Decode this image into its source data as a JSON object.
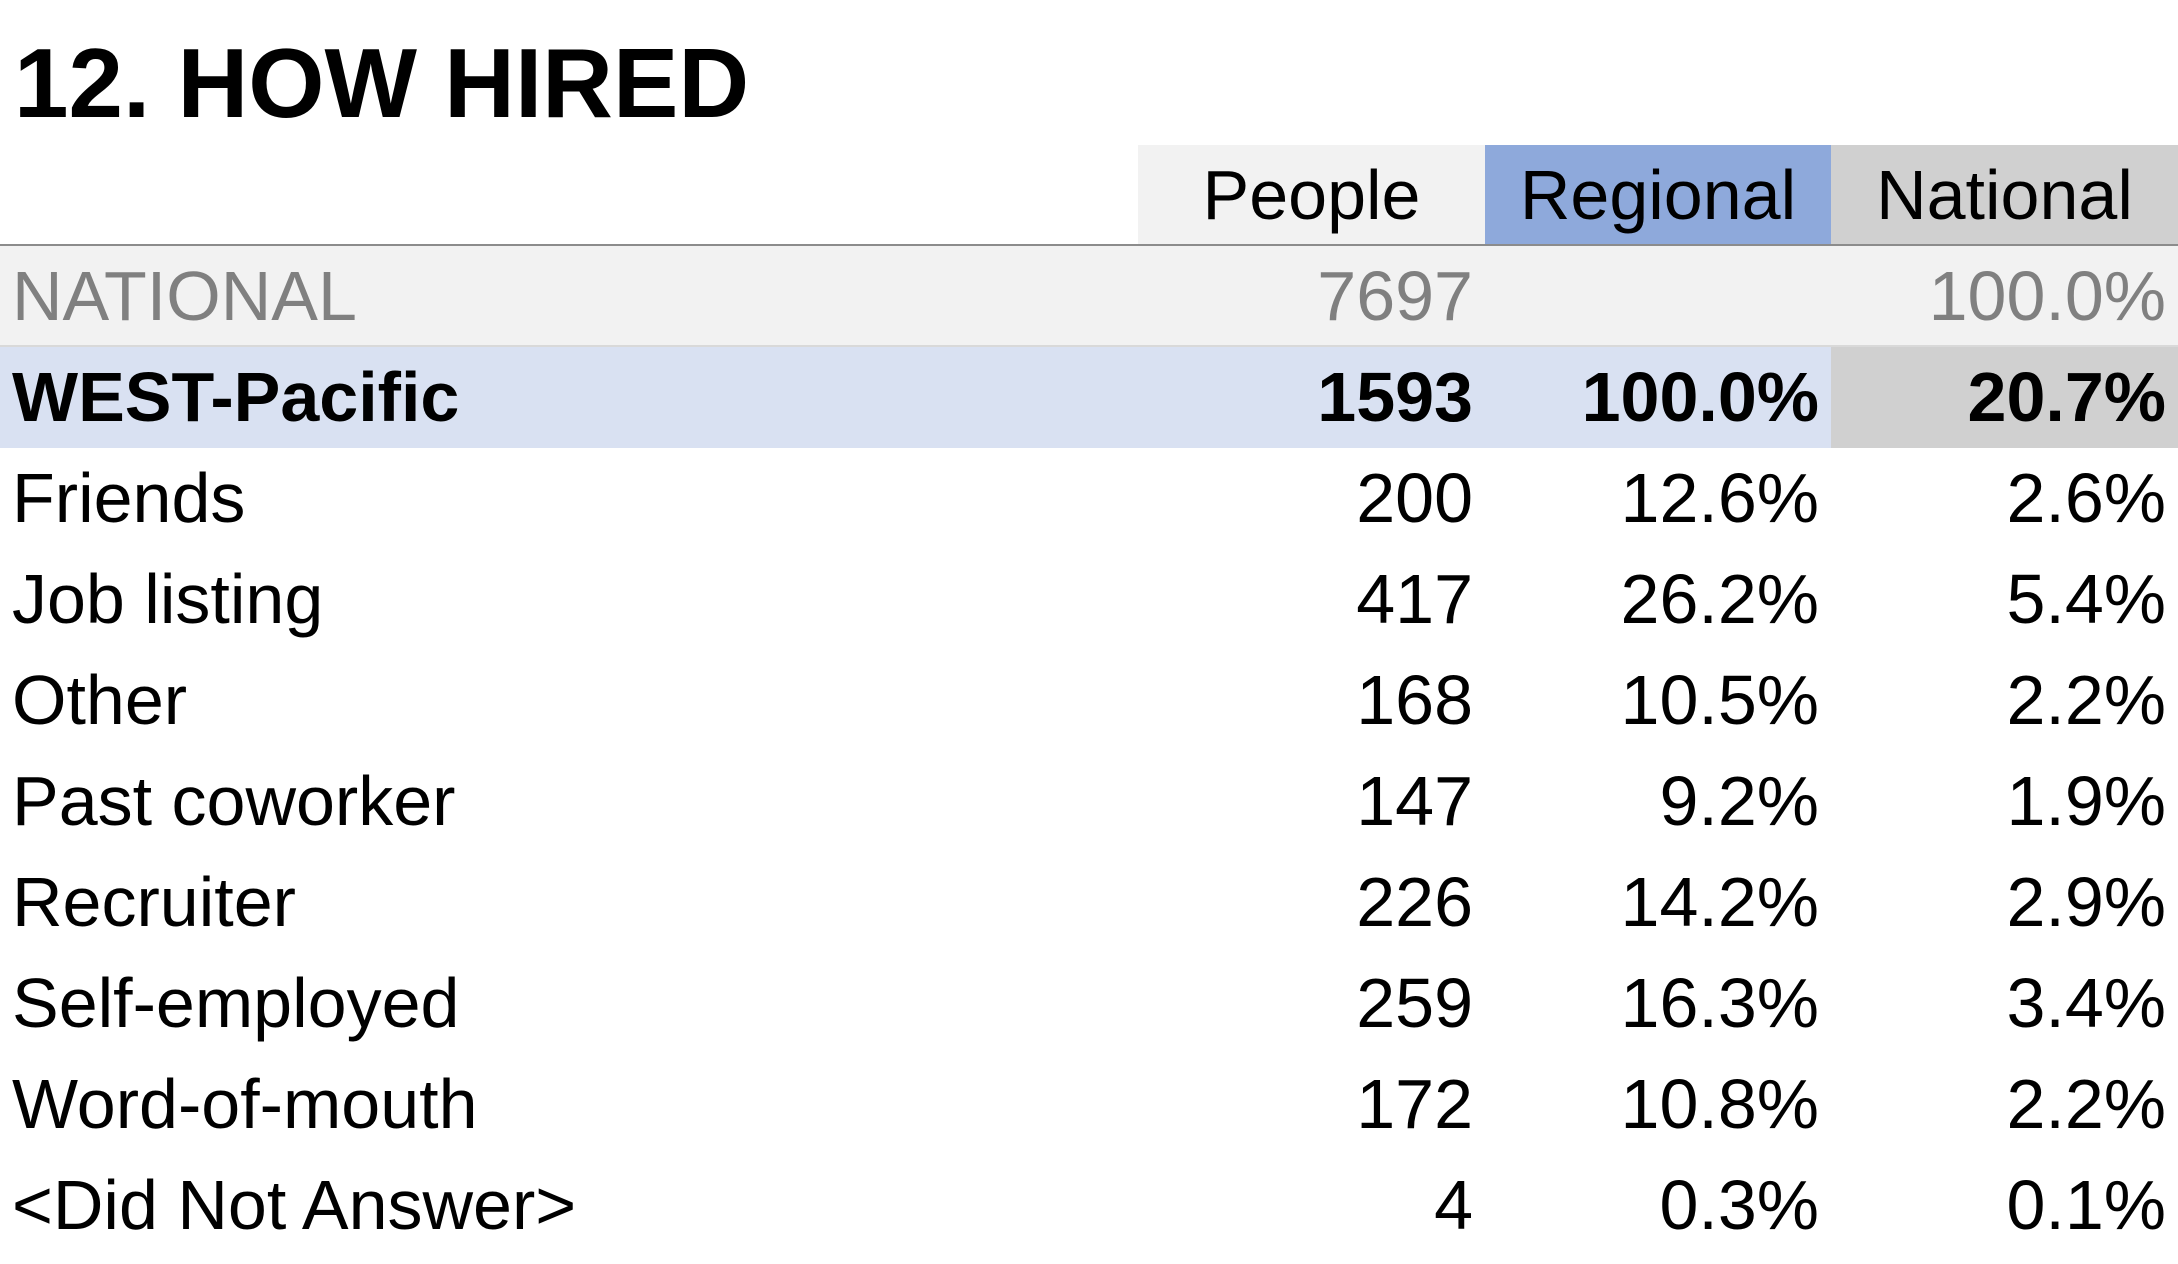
{
  "title": "12. HOW HIRED",
  "columns": {
    "people": "People",
    "regional": "Regional",
    "national": "National"
  },
  "national_row": {
    "label": "NATIONAL",
    "people": "7697",
    "regional": "",
    "national": "100.0%"
  },
  "region_row": {
    "label": "WEST-Pacific",
    "people": "1593",
    "regional": "100.0%",
    "national": "20.7%"
  },
  "rows": [
    {
      "label": "Friends",
      "people": "200",
      "regional": "12.6%",
      "national": "2.6%"
    },
    {
      "label": "Job listing",
      "people": "417",
      "regional": "26.2%",
      "national": "5.4%"
    },
    {
      "label": "Other",
      "people": "168",
      "regional": "10.5%",
      "national": "2.2%"
    },
    {
      "label": "Past coworker",
      "people": "147",
      "regional": "9.2%",
      "national": "1.9%"
    },
    {
      "label": "Recruiter",
      "people": "226",
      "regional": "14.2%",
      "national": "2.9%"
    },
    {
      "label": "Self-employed",
      "people": "259",
      "regional": "16.3%",
      "national": "3.4%"
    },
    {
      "label": "Word-of-mouth",
      "people": "172",
      "regional": "10.8%",
      "national": "2.2%"
    },
    {
      "label": "<Did Not Answer>",
      "people": "4",
      "regional": "0.3%",
      "national": "0.1%"
    }
  ],
  "colors": {
    "people_header_bg": "#f2f2f2",
    "regional_header_bg": "#8ea9db",
    "national_header_bg": "#d0d0d0",
    "national_row_bg": "#f2f2f2",
    "national_row_text": "#808080",
    "region_row_bg": "#d9e1f2"
  }
}
